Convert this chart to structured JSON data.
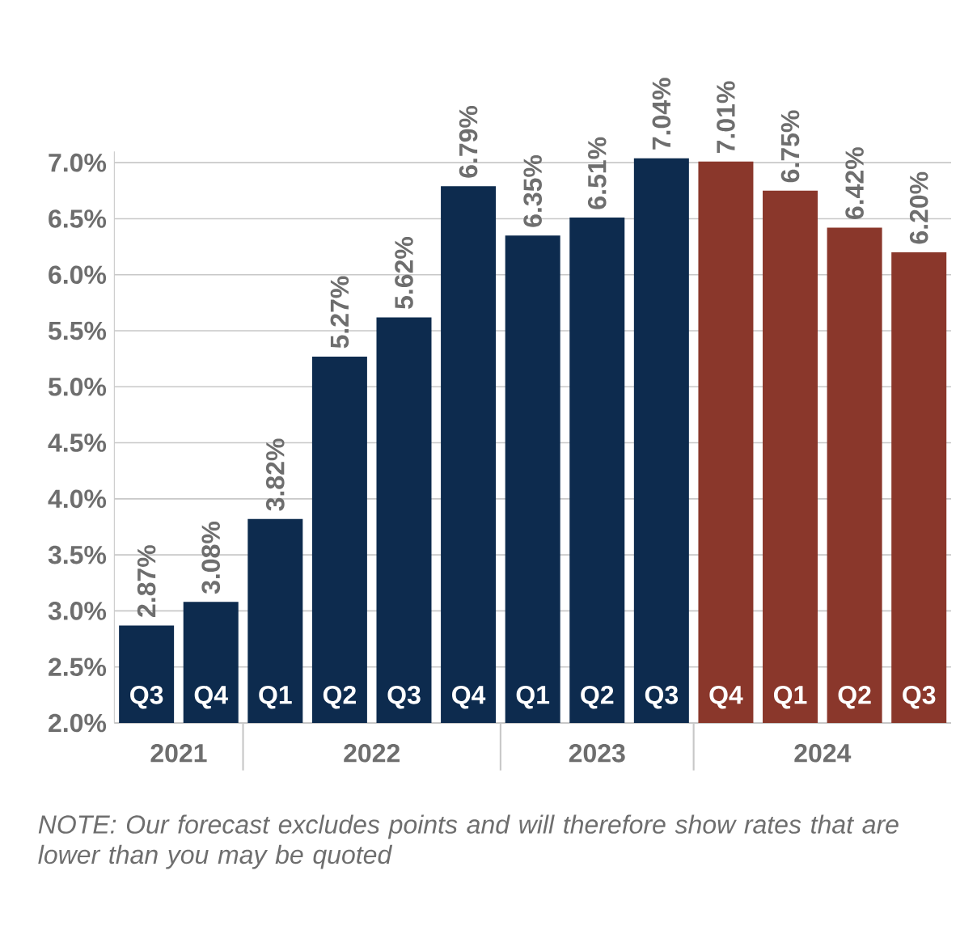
{
  "chart_data": {
    "type": "bar",
    "categories": [
      "Q3",
      "Q4",
      "Q1",
      "Q2",
      "Q3",
      "Q4",
      "Q1",
      "Q2",
      "Q3",
      "Q4",
      "Q1",
      "Q2",
      "Q3"
    ],
    "values": [
      2.87,
      3.08,
      3.82,
      5.27,
      5.62,
      6.79,
      6.35,
      6.51,
      7.04,
      7.01,
      6.75,
      6.42,
      6.2
    ],
    "value_labels": [
      "2.87%",
      "3.08%",
      "3.82%",
      "5.27%",
      "5.62%",
      "6.79%",
      "6.35%",
      "6.51%",
      "7.04%",
      "7.01%",
      "6.75%",
      "6.42%",
      "6.20%"
    ],
    "colors": [
      "#0d2b4e",
      "#0d2b4e",
      "#0d2b4e",
      "#0d2b4e",
      "#0d2b4e",
      "#0d2b4e",
      "#0d2b4e",
      "#0d2b4e",
      "#0d2b4e",
      "#8a372b",
      "#8a372b",
      "#8a372b",
      "#8a372b"
    ],
    "ylim": [
      2,
      7.1
    ],
    "yticks": [
      {
        "value": 2,
        "label": "2.0%"
      },
      {
        "value": 2.5,
        "label": "2.5%"
      },
      {
        "value": 3,
        "label": "3.0%"
      },
      {
        "value": 3.5,
        "label": "3.5%"
      },
      {
        "value": 4,
        "label": "4.0%"
      },
      {
        "value": 4.5,
        "label": "4.5%"
      },
      {
        "value": 5,
        "label": "5.0%"
      },
      {
        "value": 5.5,
        "label": "5.5%"
      },
      {
        "value": 6,
        "label": "6.0%"
      },
      {
        "value": 6.5,
        "label": "6.5%"
      },
      {
        "value": 7,
        "label": "7.0%"
      }
    ],
    "grid": "y",
    "annotations": [
      "2021",
      "2022",
      "2023",
      "2024",
      "NOTE: Our forecast excludes points and will therefore show rates that are lower than you may be quoted"
    ]
  }
}
